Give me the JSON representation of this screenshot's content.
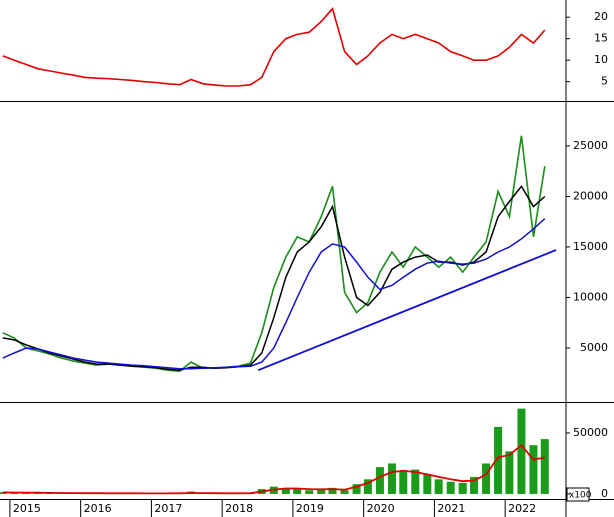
{
  "chart_data": [
    {
      "type": "line",
      "x": [
        2014.9,
        2015.06,
        2015.23,
        2015.4,
        2015.56,
        2015.73,
        2015.9,
        2016.06,
        2016.23,
        2016.4,
        2016.56,
        2016.73,
        2016.9,
        2017.06,
        2017.23,
        2017.4,
        2017.56,
        2017.73,
        2017.9,
        2018.06,
        2018.23,
        2018.4,
        2018.56,
        2018.73,
        2018.9,
        2019.06,
        2019.23,
        2019.4,
        2019.56,
        2019.73,
        2019.9,
        2020.06,
        2020.23,
        2020.4,
        2020.56,
        2020.73,
        2020.9,
        2021.06,
        2021.23,
        2021.4,
        2021.56,
        2021.73,
        2021.9,
        2022.06,
        2022.23,
        2022.4,
        2022.56
      ],
      "series": [
        {
          "color": "#e00000",
          "values": [
            11,
            10,
            9,
            8,
            7.5,
            7,
            6.5,
            6,
            5.8,
            5.7,
            5.5,
            5.3,
            5,
            4.8,
            4.5,
            4.3,
            5.5,
            4.5,
            4.2,
            4,
            4,
            4.3,
            6,
            12,
            15,
            16,
            16.5,
            19,
            22,
            12,
            9,
            11,
            14,
            16,
            15,
            16,
            15,
            14,
            12,
            11,
            10,
            10,
            11,
            13,
            16,
            14,
            17
          ]
        }
      ],
      "xlim": [
        2014.86,
        2022.86
      ],
      "ylim": [
        0.5,
        24
      ],
      "yticks": [
        5,
        10,
        15,
        20
      ]
    },
    {
      "type": "line",
      "x": [
        2014.9,
        2015.06,
        2015.23,
        2015.4,
        2015.56,
        2015.73,
        2015.9,
        2016.06,
        2016.23,
        2016.4,
        2016.56,
        2016.73,
        2016.9,
        2017.06,
        2017.23,
        2017.4,
        2017.56,
        2017.73,
        2017.9,
        2018.06,
        2018.23,
        2018.4,
        2018.56,
        2018.73,
        2018.9,
        2019.06,
        2019.23,
        2019.4,
        2019.56,
        2019.73,
        2019.9,
        2020.06,
        2020.23,
        2020.4,
        2020.56,
        2020.73,
        2020.9,
        2021.06,
        2021.23,
        2021.4,
        2021.56,
        2021.73,
        2021.9,
        2022.06,
        2022.23,
        2022.4,
        2022.56
      ],
      "series": [
        {
          "color": "#1a8c1a",
          "values": [
            6500,
            6000,
            5000,
            4700,
            4400,
            4000,
            3700,
            3500,
            3300,
            3400,
            3300,
            3200,
            3100,
            3000,
            2800,
            2700,
            3600,
            3000,
            3000,
            3100,
            3200,
            3500,
            6500,
            11000,
            14000,
            16000,
            15500,
            18000,
            21000,
            10500,
            8500,
            9500,
            12500,
            14500,
            13000,
            15000,
            14000,
            13000,
            14000,
            12500,
            14000,
            15500,
            20500,
            18000,
            26000,
            16000,
            23000
          ]
        },
        {
          "color": "#000000",
          "values": [
            6000,
            5800,
            5300,
            4900,
            4500,
            4200,
            3900,
            3600,
            3400,
            3400,
            3300,
            3200,
            3150,
            3050,
            2900,
            2800,
            3100,
            3100,
            3000,
            3050,
            3150,
            3300,
            4500,
            8000,
            12000,
            14500,
            15500,
            17000,
            19000,
            14000,
            10000,
            9200,
            10500,
            12800,
            13500,
            14000,
            14200,
            13500,
            13500,
            13200,
            13500,
            14500,
            18000,
            19500,
            21000,
            19000,
            20000
          ]
        },
        {
          "color": "#1010d0",
          "values": [
            4000,
            4500,
            5000,
            4900,
            4600,
            4300,
            4000,
            3800,
            3600,
            3500,
            3400,
            3300,
            3250,
            3150,
            3050,
            2950,
            2950,
            3000,
            3050,
            3100,
            3150,
            3200,
            3600,
            5000,
            7500,
            10000,
            12500,
            14500,
            15300,
            15000,
            13500,
            12000,
            10800,
            11200,
            12000,
            12800,
            13400,
            13600,
            13400,
            13300,
            13400,
            13800,
            14500,
            15000,
            15800,
            16800,
            17800
          ]
        }
      ],
      "trendline": {
        "color": "#1010d0",
        "x": [
          2018.51,
          2022.72
        ],
        "values": [
          2800,
          14700
        ]
      },
      "xlim": [
        2014.86,
        2022.86
      ],
      "ylim": [
        -150,
        29350
      ],
      "yticks": [
        5000,
        10000,
        15000,
        20000,
        25000
      ]
    },
    {
      "type": "bar",
      "x": [
        2014.9,
        2015.06,
        2015.23,
        2015.4,
        2015.56,
        2015.73,
        2015.9,
        2016.06,
        2016.23,
        2016.4,
        2016.56,
        2016.73,
        2016.9,
        2017.06,
        2017.23,
        2017.4,
        2017.56,
        2017.73,
        2017.9,
        2018.06,
        2018.23,
        2018.4,
        2018.56,
        2018.73,
        2018.9,
        2019.06,
        2019.23,
        2019.4,
        2019.56,
        2019.73,
        2019.9,
        2020.06,
        2020.23,
        2020.4,
        2020.56,
        2020.73,
        2020.9,
        2021.06,
        2021.23,
        2021.4,
        2021.56,
        2021.73,
        2021.9,
        2022.06,
        2022.23,
        2022.4,
        2022.56
      ],
      "series": [
        {
          "color": "#1a9c1a",
          "values": [
            1500,
            1200,
            1000,
            900,
            800,
            700,
            600,
            600,
            500,
            500,
            500,
            500,
            400,
            400,
            500,
            500,
            2000,
            600,
            500,
            500,
            600,
            800,
            4000,
            6000,
            5000,
            4000,
            3000,
            4000,
            5000,
            3000,
            8000,
            12000,
            22000,
            25000,
            18000,
            20000,
            16000,
            12000,
            10000,
            9000,
            14000,
            25000,
            55000,
            35000,
            70000,
            40000,
            45000
          ]
        },
        {
          "color": "#e00000",
          "values": [
            1300,
            1200,
            1100,
            1000,
            900,
            800,
            700,
            650,
            600,
            550,
            500,
            500,
            450,
            450,
            450,
            500,
            800,
            700,
            600,
            550,
            550,
            650,
            2000,
            3500,
            4500,
            4500,
            4000,
            3800,
            4000,
            3500,
            6000,
            9000,
            14000,
            18000,
            19000,
            18000,
            16000,
            14000,
            12000,
            10500,
            11000,
            16000,
            30000,
            32000,
            40000,
            28000,
            30000
          ]
        }
      ],
      "unit_label": "x100",
      "xlim": [
        2014.86,
        2022.86
      ],
      "ylim": [
        -2500,
        74600
      ],
      "yticks": [
        0,
        50000
      ],
      "xticks": [
        2015,
        2016,
        2017,
        2018,
        2019,
        2020,
        2021,
        2022
      ]
    }
  ]
}
